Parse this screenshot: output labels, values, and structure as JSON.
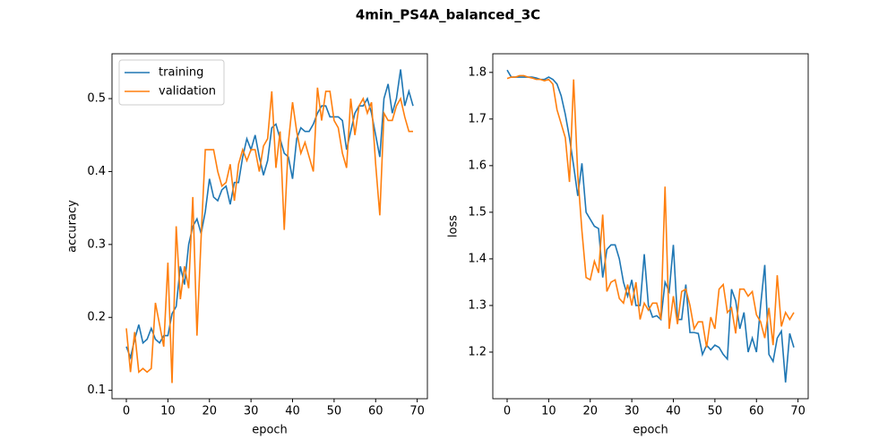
{
  "title": "4min_PS4A_balanced_3C",
  "chart_data": [
    {
      "type": "line",
      "xlabel": "epoch",
      "ylabel": "accuracy",
      "legend": "upper left",
      "x": [
        0,
        1,
        2,
        3,
        4,
        5,
        6,
        7,
        8,
        9,
        10,
        11,
        12,
        13,
        14,
        15,
        16,
        17,
        18,
        19,
        20,
        21,
        22,
        23,
        24,
        25,
        26,
        27,
        28,
        29,
        30,
        31,
        32,
        33,
        34,
        35,
        36,
        37,
        38,
        39,
        40,
        41,
        42,
        43,
        44,
        45,
        46,
        47,
        48,
        49,
        50,
        51,
        52,
        53,
        54,
        55,
        56,
        57,
        58,
        59,
        60,
        61,
        62,
        63,
        64,
        65,
        66,
        67,
        68,
        69
      ],
      "xlim": [
        -3.45,
        72.45
      ],
      "xticks": [
        0,
        10,
        20,
        30,
        40,
        50,
        60,
        70
      ],
      "ylim": [
        0.0885,
        0.5615
      ],
      "yticks": [
        0.1,
        0.2,
        0.3,
        0.4,
        0.5
      ],
      "series": [
        {
          "name": "training",
          "color": "#1f77b4",
          "values": [
            0.16,
            0.145,
            0.17,
            0.19,
            0.165,
            0.17,
            0.185,
            0.17,
            0.165,
            0.175,
            0.175,
            0.205,
            0.215,
            0.27,
            0.245,
            0.3,
            0.325,
            0.335,
            0.315,
            0.345,
            0.39,
            0.365,
            0.36,
            0.375,
            0.38,
            0.355,
            0.385,
            0.385,
            0.42,
            0.445,
            0.43,
            0.45,
            0.42,
            0.395,
            0.415,
            0.46,
            0.465,
            0.445,
            0.425,
            0.42,
            0.39,
            0.445,
            0.46,
            0.455,
            0.455,
            0.465,
            0.48,
            0.49,
            0.49,
            0.475,
            0.475,
            0.475,
            0.47,
            0.43,
            0.455,
            0.48,
            0.49,
            0.49,
            0.5,
            0.48,
            0.45,
            0.42,
            0.5,
            0.52,
            0.48,
            0.5,
            0.54,
            0.49,
            0.51,
            0.49
          ]
        },
        {
          "name": "validation",
          "color": "#ff7f0e",
          "values": [
            0.185,
            0.125,
            0.18,
            0.125,
            0.13,
            0.125,
            0.13,
            0.22,
            0.19,
            0.16,
            0.275,
            0.11,
            0.325,
            0.225,
            0.27,
            0.24,
            0.365,
            0.175,
            0.31,
            0.43,
            0.43,
            0.43,
            0.4,
            0.38,
            0.385,
            0.41,
            0.36,
            0.41,
            0.43,
            0.415,
            0.43,
            0.43,
            0.4,
            0.435,
            0.445,
            0.51,
            0.405,
            0.455,
            0.32,
            0.44,
            0.495,
            0.455,
            0.425,
            0.44,
            0.42,
            0.4,
            0.515,
            0.47,
            0.51,
            0.51,
            0.47,
            0.46,
            0.425,
            0.405,
            0.5,
            0.45,
            0.49,
            0.5,
            0.48,
            0.495,
            0.41,
            0.34,
            0.48,
            0.47,
            0.47,
            0.49,
            0.5,
            0.475,
            0.455,
            0.455
          ]
        }
      ]
    },
    {
      "type": "line",
      "xlabel": "epoch",
      "ylabel": "loss",
      "x": [
        0,
        1,
        2,
        3,
        4,
        5,
        6,
        7,
        8,
        9,
        10,
        11,
        12,
        13,
        14,
        15,
        16,
        17,
        18,
        19,
        20,
        21,
        22,
        23,
        24,
        25,
        26,
        27,
        28,
        29,
        30,
        31,
        32,
        33,
        34,
        35,
        36,
        37,
        38,
        39,
        40,
        41,
        42,
        43,
        44,
        45,
        46,
        47,
        48,
        49,
        50,
        51,
        52,
        53,
        54,
        55,
        56,
        57,
        58,
        59,
        60,
        61,
        62,
        63,
        64,
        65,
        66,
        67,
        68,
        69
      ],
      "xlim": [
        -3.45,
        72.45
      ],
      "xticks": [
        0,
        10,
        20,
        30,
        40,
        50,
        60,
        70
      ],
      "ylim": [
        1.1,
        1.84
      ],
      "yticks": [
        1.2,
        1.3,
        1.4,
        1.5,
        1.6,
        1.7,
        1.8
      ],
      "series": [
        {
          "color": "#1f77b4",
          "values": [
            1.805,
            1.79,
            1.79,
            1.79,
            1.79,
            1.79,
            1.79,
            1.788,
            1.785,
            1.785,
            1.79,
            1.785,
            1.775,
            1.75,
            1.71,
            1.66,
            1.6,
            1.535,
            1.605,
            1.5,
            1.485,
            1.47,
            1.465,
            1.36,
            1.42,
            1.43,
            1.43,
            1.4,
            1.35,
            1.32,
            1.355,
            1.3,
            1.3,
            1.41,
            1.3,
            1.275,
            1.278,
            1.27,
            1.35,
            1.33,
            1.43,
            1.27,
            1.27,
            1.345,
            1.242,
            1.242,
            1.24,
            1.195,
            1.215,
            1.205,
            1.215,
            1.21,
            1.195,
            1.185,
            1.335,
            1.31,
            1.25,
            1.285,
            1.2,
            1.23,
            1.2,
            1.3,
            1.387,
            1.195,
            1.18,
            1.23,
            1.245,
            1.135,
            1.24,
            1.21
          ]
        },
        {
          "color": "#ff7f0e",
          "values": [
            1.787,
            1.79,
            1.79,
            1.793,
            1.793,
            1.79,
            1.788,
            1.785,
            1.785,
            1.782,
            1.785,
            1.775,
            1.72,
            1.69,
            1.66,
            1.565,
            1.785,
            1.58,
            1.46,
            1.36,
            1.355,
            1.395,
            1.37,
            1.495,
            1.33,
            1.35,
            1.355,
            1.315,
            1.305,
            1.345,
            1.3,
            1.35,
            1.27,
            1.305,
            1.29,
            1.305,
            1.305,
            1.27,
            1.555,
            1.25,
            1.32,
            1.26,
            1.33,
            1.335,
            1.3,
            1.25,
            1.265,
            1.265,
            1.21,
            1.275,
            1.25,
            1.335,
            1.345,
            1.285,
            1.295,
            1.24,
            1.335,
            1.335,
            1.32,
            1.33,
            1.28,
            1.265,
            1.23,
            1.295,
            1.215,
            1.365,
            1.255,
            1.285,
            1.27,
            1.285
          ]
        }
      ]
    }
  ]
}
